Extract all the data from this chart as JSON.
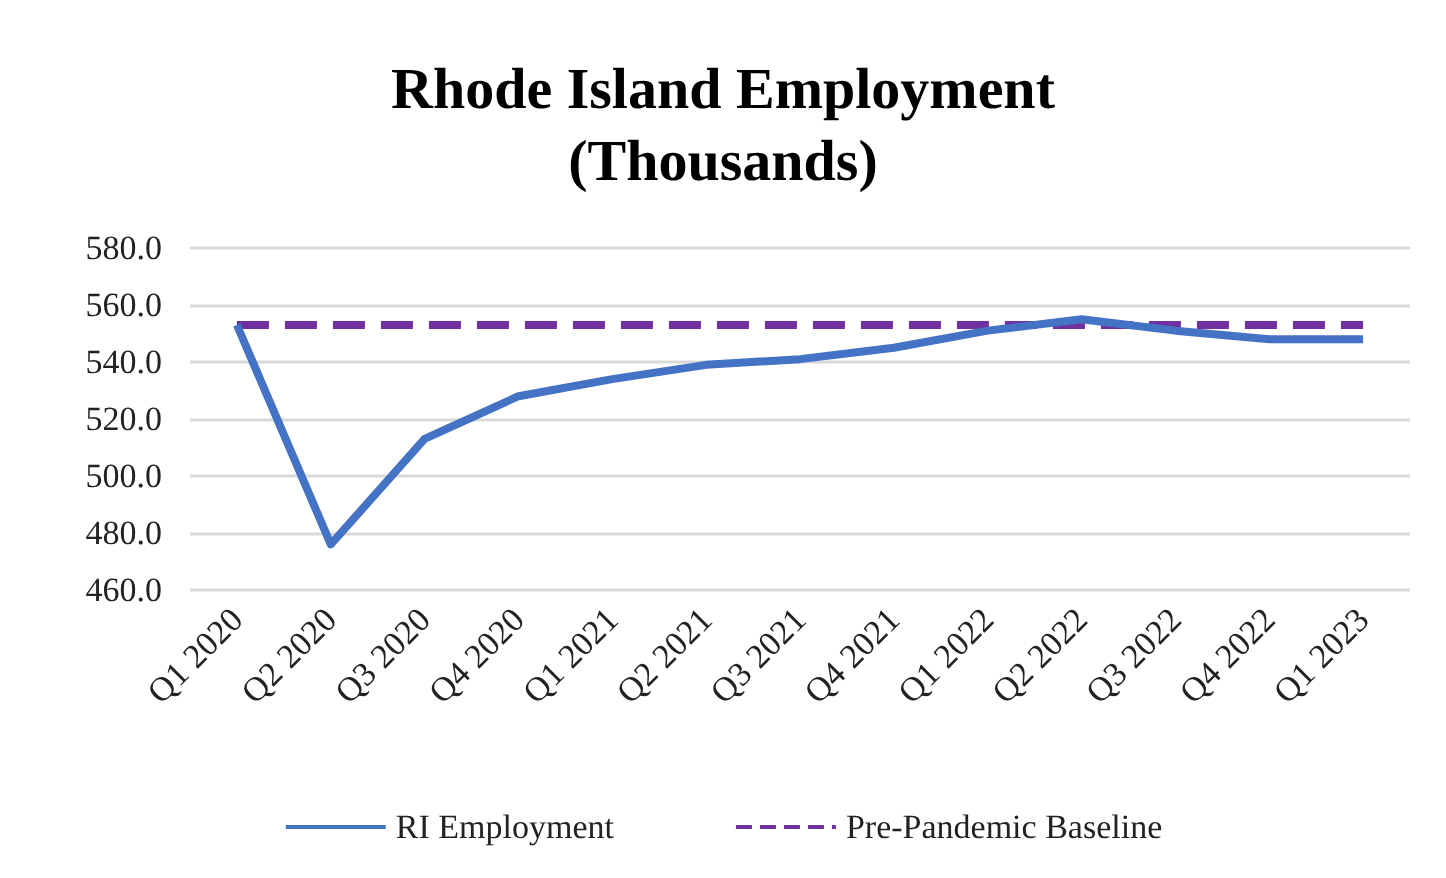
{
  "chart_data": {
    "type": "line",
    "title": "Rhode Island Employment\n(Thousands)",
    "categories": [
      "Q1 2020",
      "Q2 2020",
      "Q3 2020",
      "Q4 2020",
      "Q1 2021",
      "Q2 2021",
      "Q3 2021",
      "Q4 2021",
      "Q1 2022",
      "Q2 2022",
      "Q3 2022",
      "Q4 2022",
      "Q1 2023"
    ],
    "series": [
      {
        "name": "RI Employment",
        "color": "#4472c4",
        "line_style": "solid",
        "values": [
          553,
          476,
          513,
          528,
          534,
          539,
          541,
          545,
          551,
          555,
          551,
          548,
          548
        ]
      },
      {
        "name": "Pre-Pandemic Baseline",
        "color": "#7030a0",
        "line_style": "dashed",
        "values": [
          553,
          553,
          553,
          553,
          553,
          553,
          553,
          553,
          553,
          553,
          553,
          553,
          553
        ]
      }
    ],
    "ylim": [
      460,
      580
    ],
    "yticks": [
      {
        "value": 460,
        "label": "460.0"
      },
      {
        "value": 480,
        "label": "480.0"
      },
      {
        "value": 500,
        "label": "500.0"
      },
      {
        "value": 520,
        "label": "520.0"
      },
      {
        "value": 540,
        "label": "540.0"
      },
      {
        "value": 560,
        "label": "560.0"
      },
      {
        "value": 580,
        "label": "580.0"
      }
    ],
    "grid": "y",
    "legend": "bottom",
    "marker": "none"
  }
}
